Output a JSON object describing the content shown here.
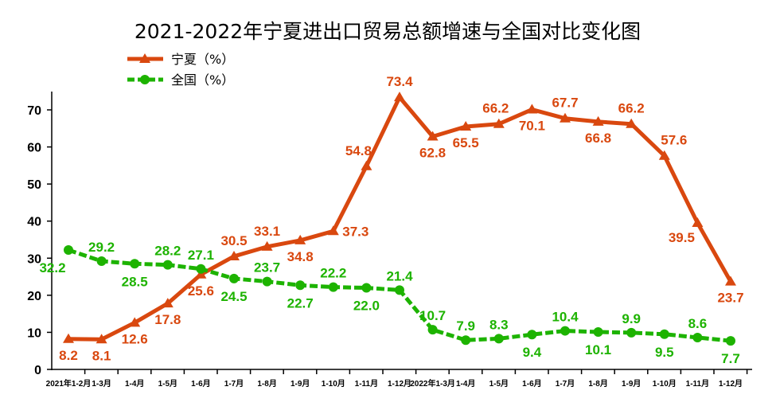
{
  "chart_data": {
    "type": "line",
    "title": "2021-2022年宁夏进出口贸易总额增速与全国对比变化图",
    "xlabel": "",
    "ylabel": "",
    "ylim": [
      0,
      70
    ],
    "yticks": [
      0,
      10,
      20,
      30,
      40,
      50,
      60,
      70
    ],
    "grid": false,
    "legend_position": "top-left",
    "categories": [
      "2021年1-2月",
      "1-3月",
      "1-4月",
      "1-5月",
      "1-6月",
      "1-7月",
      "1-8月",
      "1-9月",
      "1-10月",
      "1-11月",
      "1-12月",
      "2022年1-3月",
      "1-4月",
      "1-5月",
      "1-6月",
      "1-7月",
      "1-8月",
      "1-9月",
      "1-10月",
      "1-11月",
      "1-12月"
    ],
    "series": [
      {
        "name": "宁夏（%）",
        "color": "#D9480F",
        "marker": "triangle",
        "values": [
          8.2,
          8.1,
          12.6,
          17.8,
          25.6,
          30.5,
          33.1,
          34.8,
          37.3,
          54.8,
          73.4,
          62.8,
          65.5,
          66.2,
          70.1,
          67.7,
          66.8,
          66.2,
          57.6,
          39.5,
          23.7
        ]
      },
      {
        "name": "全国（%）",
        "color": "#1DB300",
        "marker": "circle",
        "values": [
          32.2,
          29.2,
          28.5,
          28.2,
          27.1,
          24.5,
          23.7,
          22.7,
          22.2,
          22.0,
          21.4,
          10.7,
          7.9,
          8.3,
          9.4,
          10.4,
          10.1,
          9.9,
          9.5,
          8.6,
          7.7
        ]
      }
    ]
  }
}
